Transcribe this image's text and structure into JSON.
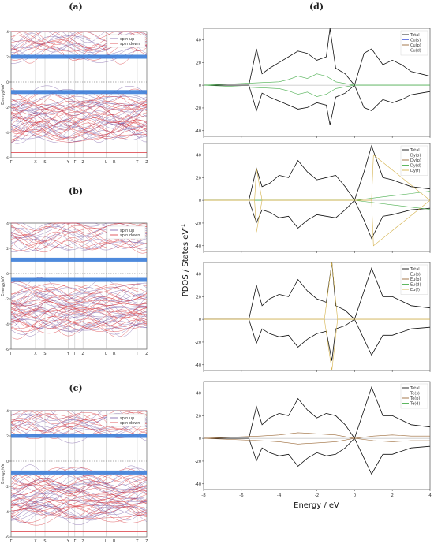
{
  "panel_labels": {
    "a": "(a)",
    "b": "(b)",
    "c": "(c)",
    "d": "(d)"
  },
  "band_shared": {
    "ylabel": "Energy/eV",
    "yticks": [
      4,
      2,
      0,
      -2,
      -4,
      -6
    ],
    "kpoints": [
      "Γ",
      "X",
      "S",
      "Y",
      "Γ",
      "Z",
      "U",
      "R",
      "T",
      "Z"
    ],
    "legend": [
      "spin up",
      "spin down"
    ]
  },
  "pdos_shared": {
    "ylabel": "PDOS / States eV",
    "ylabel_sup": "-1",
    "xlabel": "Energy / eV",
    "xticks": [
      "-8",
      "-6",
      "-4",
      "-2",
      "0",
      "2",
      "4"
    ],
    "yticks_upper": [
      "40",
      "20",
      "0",
      "-20",
      "-40"
    ],
    "yticks_lower": [
      "40",
      "20",
      "0",
      "-20",
      "-40"
    ]
  },
  "colors": {
    "spin_up": "#7b5ea7",
    "spin_down": "#d9343b",
    "flat_band": "#3b7dd8",
    "total": "#111111",
    "orb_s": "#5b6ee1",
    "orb_p": "#9c6b3a",
    "orb_d": "#4caf50",
    "orb_f": "#d4b24c"
  },
  "chart_data": [
    {
      "type": "line",
      "panel": "(a)",
      "ylabel": "Energy/eV",
      "ylim": [
        -6,
        4
      ],
      "x_labels": [
        "Γ",
        "X",
        "S",
        "Y",
        "Γ",
        "Z",
        "U",
        "R",
        "T",
        "Z"
      ],
      "series": [
        {
          "name": "spin up"
        },
        {
          "name": "spin down"
        }
      ],
      "flat_bands_eV": [
        2.0,
        -0.8
      ]
    },
    {
      "type": "line",
      "panel": "(b)",
      "ylabel": "Energy/eV",
      "ylim": [
        -6,
        4
      ],
      "x_labels": [
        "Γ",
        "X",
        "S",
        "Y",
        "Γ",
        "Z",
        "U",
        "R",
        "T",
        "Z"
      ],
      "series": [
        {
          "name": "spin up"
        },
        {
          "name": "spin down"
        }
      ],
      "flat_bands_eV": [
        1.1,
        -0.5
      ]
    },
    {
      "type": "line",
      "panel": "(c)",
      "ylabel": "Energy/eV",
      "ylim": [
        -6,
        4
      ],
      "x_labels": [
        "Γ",
        "X",
        "S",
        "Y",
        "Γ",
        "Z",
        "U",
        "R",
        "T",
        "Z"
      ],
      "series": [
        {
          "name": "spin up"
        },
        {
          "name": "spin down"
        }
      ],
      "flat_bands_eV": [
        2.0,
        -0.9
      ]
    },
    {
      "type": "line",
      "panel": "(d) Cu",
      "xlabel": "Energy / eV",
      "ylabel": "PDOS / States eV-1",
      "xlim": [
        -8,
        4
      ],
      "ylim": [
        -45,
        50
      ],
      "series": [
        {
          "name": "Total",
          "x": [
            -8,
            -5.6,
            -5.2,
            -4.9,
            -4.5,
            -4,
            -3.5,
            -3,
            -2.5,
            -2,
            -1.5,
            -1.3,
            -1,
            -0.5,
            0,
            0.5,
            0.9,
            1.5,
            2,
            2.5,
            3,
            3.5,
            4
          ],
          "y": [
            0,
            0,
            32,
            10,
            15,
            20,
            25,
            30,
            28,
            22,
            25,
            50,
            15,
            10,
            0,
            28,
            32,
            18,
            22,
            18,
            12,
            10,
            8
          ]
        },
        {
          "name": "Cu(s)"
        },
        {
          "name": "Cu(p)"
        },
        {
          "name": "Cu(d)",
          "x": [
            -8,
            -4,
            -3.5,
            -3,
            -2.5,
            -2,
            -1.5,
            -1,
            0,
            4
          ],
          "y": [
            0,
            3,
            5,
            8,
            6,
            10,
            8,
            3,
            0,
            0
          ]
        }
      ]
    },
    {
      "type": "line",
      "panel": "(d) Dy",
      "xlabel": "Energy / eV",
      "ylabel": "PDOS / States eV-1",
      "xlim": [
        -8,
        4
      ],
      "ylim": [
        -45,
        50
      ],
      "series": [
        {
          "name": "Total",
          "x": [
            -8,
            -5.6,
            -5.2,
            -4.9,
            -4.5,
            -4,
            -3.5,
            -3,
            -2.5,
            -2,
            -1.5,
            -1,
            -0.5,
            0,
            0.5,
            0.9,
            1.5,
            2,
            3,
            4
          ],
          "y": [
            0,
            0,
            28,
            12,
            15,
            22,
            20,
            35,
            25,
            18,
            20,
            22,
            12,
            0,
            25,
            48,
            20,
            18,
            12,
            10
          ]
        },
        {
          "name": "Dy(s)"
        },
        {
          "name": "Dy(p)"
        },
        {
          "name": "Dy(d)",
          "x": [
            -8,
            0,
            1,
            2,
            3,
            4
          ],
          "y": [
            0,
            0,
            2,
            4,
            6,
            8
          ]
        },
        {
          "name": "Dy(f)",
          "x": [
            -8,
            -5.3,
            -5.2,
            -4.9,
            0,
            0.9,
            1.0,
            4
          ],
          "y": [
            0,
            0,
            28,
            0,
            0,
            0,
            40,
            0
          ]
        }
      ]
    },
    {
      "type": "line",
      "panel": "(d) Eu",
      "xlabel": "Energy / eV",
      "ylabel": "PDOS / States eV-1",
      "xlim": [
        -8,
        4
      ],
      "ylim": [
        -45,
        50
      ],
      "series": [
        {
          "name": "Total",
          "x": [
            -8,
            -5.6,
            -5.2,
            -4.9,
            -4.5,
            -4,
            -3.5,
            -3,
            -2.5,
            -2,
            -1.5,
            -1.2,
            -1,
            -0.5,
            0,
            0.5,
            0.9,
            1.5,
            2,
            3,
            4
          ],
          "y": [
            0,
            0,
            30,
            12,
            18,
            22,
            20,
            35,
            25,
            18,
            15,
            52,
            12,
            8,
            0,
            25,
            45,
            20,
            20,
            12,
            10
          ]
        },
        {
          "name": "Eu(s)"
        },
        {
          "name": "Eu(p)"
        },
        {
          "name": "Eu(d)"
        },
        {
          "name": "Eu(f)",
          "x": [
            -8,
            -1.6,
            -1.2,
            -0.9,
            4
          ],
          "y": [
            0,
            0,
            50,
            0,
            0
          ]
        }
      ]
    },
    {
      "type": "line",
      "panel": "(d) Te",
      "xlabel": "Energy / eV",
      "ylabel": "PDOS / States eV-1",
      "xlim": [
        -8,
        4
      ],
      "ylim": [
        -45,
        50
      ],
      "series": [
        {
          "name": "Total",
          "x": [
            -8,
            -5.6,
            -5.2,
            -4.9,
            -4.5,
            -4,
            -3.5,
            -3,
            -2.5,
            -2,
            -1.5,
            -1,
            -0.5,
            0,
            0.5,
            0.9,
            1.5,
            2,
            3,
            4
          ],
          "y": [
            0,
            0,
            28,
            12,
            18,
            22,
            20,
            35,
            25,
            18,
            22,
            20,
            12,
            0,
            25,
            45,
            20,
            20,
            12,
            10
          ]
        },
        {
          "name": "Te(s)"
        },
        {
          "name": "Te(p)",
          "x": [
            -8,
            -5,
            -4,
            -3,
            -2,
            -1,
            0,
            1,
            2,
            3,
            4
          ],
          "y": [
            0,
            2,
            3,
            5,
            4,
            3,
            0,
            2,
            3,
            2,
            2
          ]
        },
        {
          "name": "Te(d)"
        }
      ]
    }
  ]
}
